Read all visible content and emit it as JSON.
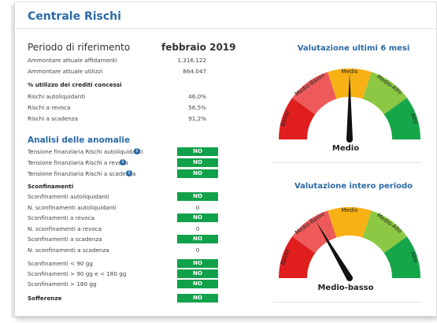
{
  "title": "Centrale Rischi",
  "period": {
    "label": "Periodo di riferimento",
    "value": "febbraio 2019"
  },
  "amounts": [
    {
      "label": "Ammontare attuale affidamenti",
      "value": "1.316.122"
    },
    {
      "label": "Ammontare attuale utilizzi",
      "value": "864.047"
    }
  ],
  "utilization": {
    "heading": "% utilizzo dei crediti concessi",
    "rows": [
      {
        "label": "Rischi autoliquidanti",
        "value": "46,0%"
      },
      {
        "label": "Rischi a revoca",
        "value": "56,5%"
      },
      {
        "label": "Rischi a scadenza",
        "value": "91,2%"
      }
    ]
  },
  "anomalies": {
    "title": "Analisi delle anomalie",
    "tension": [
      {
        "label": "Tensione finanziaria Rischi autoliquidanti",
        "status": "NO"
      },
      {
        "label": "Tensione finanziaria Rischi a revoca",
        "status": "NO"
      },
      {
        "label": "Tensione finanziaria Rischi a scadenza",
        "status": "NO"
      }
    ],
    "overruns_heading": "Sconfinamenti",
    "overruns": [
      {
        "label": "Sconfinamenti autoliquidanti",
        "value": "NO"
      },
      {
        "label": "N. sconfinamenti autoliquidanti",
        "value": "0"
      },
      {
        "label": "Sconfinamenti a revoca",
        "value": "NO"
      },
      {
        "label": "N. sconfinamenti a revoca",
        "value": "0"
      },
      {
        "label": "Sconfinamenti a scadenza",
        "value": "NO"
      },
      {
        "label": "N. sconfinamenti a scadenza",
        "value": "0"
      }
    ],
    "duration": [
      {
        "label": "Sconfinamenti < 90 gg",
        "status": "NO"
      },
      {
        "label": "Sconfinamenti > 90 gg e < 180 gg",
        "status": "NO"
      },
      {
        "label": "Sconfinamenti > 180 gg",
        "status": "NO"
      }
    ],
    "sofferenze": {
      "label": "Sofferenze",
      "status": "NO"
    }
  },
  "gauges": [
    {
      "title": "Valutazione ultimi 6 mesi",
      "result": "Medio",
      "level_index": 2,
      "segments": [
        "Basso",
        "Medio-Basso",
        "Medio",
        "Medio-Alto",
        "Alto"
      ]
    },
    {
      "title": "Valutazione intero periodo",
      "result": "Medio-basso",
      "level_index": 1.15,
      "segments": [
        "Basso",
        "Medio-Basso",
        "Medio",
        "Medio-Alto",
        "Alto"
      ]
    }
  ],
  "colors": {
    "accent": "#2b6aa6",
    "badge": "#12a14b",
    "segments": [
      "#e01e1e",
      "#ee5a5a",
      "#f7b114",
      "#8cc843",
      "#16a64a"
    ]
  }
}
